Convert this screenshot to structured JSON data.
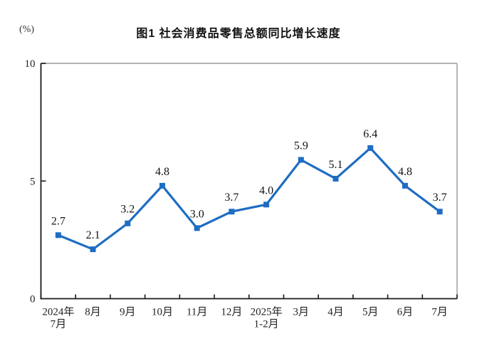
{
  "chart_data": {
    "type": "line",
    "title": "图1 社会消费品零售总额同比增长速度",
    "unit_label": "(%)",
    "categories": [
      "2024年\n7月",
      "8月",
      "9月",
      "10月",
      "11月",
      "12月",
      "2025年\n1-2月",
      "3月",
      "4月",
      "5月",
      "6月",
      "7月"
    ],
    "values": [
      2.7,
      2.1,
      3.2,
      4.8,
      3.0,
      3.7,
      4.0,
      5.9,
      5.1,
      6.4,
      4.8,
      3.7
    ],
    "xlabel": "",
    "ylabel": "(%)",
    "ylim": [
      0,
      10
    ],
    "yticks": [
      0,
      5,
      10
    ],
    "grid": "off",
    "legend": "none",
    "marker": "square",
    "colors": {
      "line": "#1e6dc2",
      "axis": "#1a1a1a",
      "border": "#a9a9a9",
      "label": "#141414"
    }
  }
}
